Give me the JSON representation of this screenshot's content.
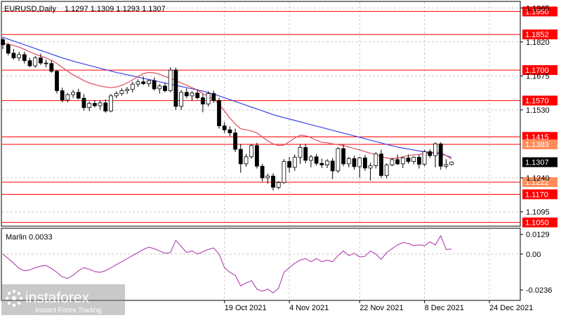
{
  "header": {
    "symbol": "EURUSD,Daily",
    "ohlc": "1.1297 1.1309 1.1293 1.1307"
  },
  "colors": {
    "background": "#ffffff",
    "grid": "#c8c8c8",
    "frame": "#000000",
    "level_line": "#ff0000",
    "level_label_bg": "#ff0000",
    "level_label_bg_light": "#ff8c5a",
    "price_label_bg": "#000000",
    "ma_fast": "#e04b5b",
    "ma_slow": "#3a44e8",
    "candle_bull_fill": "#ffffff",
    "candle_bear_fill": "#000000",
    "marlin_line": "#b040b0"
  },
  "watermark": {
    "brand": "instaforex",
    "tagline": "Instant Forex Trading",
    "icon": "instaforex-logo-icon"
  },
  "chart_data": [
    {
      "type": "candlestick",
      "title": "EURUSD,Daily",
      "ohlc_readout": "1.1297 1.1309 1.1293 1.1307",
      "ylim": [
        1.1037,
        1.1987
      ],
      "y_tick_labels": [
        "1.1965",
        "1.1820",
        "1.1675",
        "1.1530",
        "1.1240",
        "1.1095"
      ],
      "x_tick_labels": [
        "19 Oct 2021",
        "4 Nov 2021",
        "22 Nov 2021",
        "8 Dec 2021",
        "24 Dec 2021"
      ],
      "x_tick_index": [
        41,
        53,
        66,
        78,
        90
      ],
      "levels": [
        {
          "value": 1.195,
          "label": "1.1950"
        },
        {
          "value": 1.1852,
          "label": "1.1852"
        },
        {
          "value": 1.17,
          "label": "1.1700"
        },
        {
          "value": 1.157,
          "label": "1.1570"
        },
        {
          "value": 1.1415,
          "label": "1.1415"
        },
        {
          "value": 1.1383,
          "label": "1.1383",
          "light": true
        },
        {
          "value": 1.1222,
          "label": "1.1222",
          "light": true
        },
        {
          "value": 1.117,
          "label": "1.1170"
        },
        {
          "value": 1.105,
          "label": "1.1050"
        }
      ],
      "current_price": {
        "value": 1.1307,
        "label": "1.1307"
      },
      "candles": [
        [
          1.183,
          1.184,
          1.179,
          1.1808
        ],
        [
          1.1808,
          1.1815,
          1.1762,
          1.1772
        ],
        [
          1.1772,
          1.179,
          1.1745,
          1.1752
        ],
        [
          1.1752,
          1.1778,
          1.1738,
          1.1766
        ],
        [
          1.1766,
          1.1778,
          1.1728,
          1.174
        ],
        [
          1.174,
          1.1752,
          1.1712,
          1.1718
        ],
        [
          1.1718,
          1.176,
          1.171,
          1.1752
        ],
        [
          1.1752,
          1.177,
          1.1722,
          1.173
        ],
        [
          1.173,
          1.1745,
          1.1712,
          1.1728
        ],
        [
          1.1728,
          1.1742,
          1.1688,
          1.1695
        ],
        [
          1.1695,
          1.17,
          1.16,
          1.1612
        ],
        [
          1.1612,
          1.1625,
          1.1562,
          1.1572
        ],
        [
          1.1572,
          1.1603,
          1.1562,
          1.1595
        ],
        [
          1.1595,
          1.1615,
          1.158,
          1.1605
        ],
        [
          1.1605,
          1.162,
          1.1575,
          1.158
        ],
        [
          1.158,
          1.1598,
          1.1528,
          1.154
        ],
        [
          1.154,
          1.1565,
          1.1525,
          1.1558
        ],
        [
          1.1558,
          1.1572,
          1.154,
          1.1548
        ],
        [
          1.1548,
          1.157,
          1.1532,
          1.156
        ],
        [
          1.156,
          1.1575,
          1.1518,
          1.1525
        ],
        [
          1.1525,
          1.1598,
          1.152,
          1.159
        ],
        [
          1.159,
          1.161,
          1.158,
          1.16
        ],
        [
          1.16,
          1.1622,
          1.159,
          1.1612
        ],
        [
          1.1612,
          1.1628,
          1.1598,
          1.1618
        ],
        [
          1.1618,
          1.165,
          1.1605,
          1.164
        ],
        [
          1.164,
          1.166,
          1.1628,
          1.165
        ],
        [
          1.165,
          1.1672,
          1.1636,
          1.1642
        ],
        [
          1.1642,
          1.166,
          1.1628,
          1.1655
        ],
        [
          1.1655,
          1.1668,
          1.1612,
          1.162
        ],
        [
          1.162,
          1.164,
          1.16,
          1.1632
        ],
        [
          1.1632,
          1.1645,
          1.1605,
          1.1612
        ],
        [
          1.1612,
          1.1712,
          1.1605,
          1.17
        ],
        [
          1.17,
          1.171,
          1.153,
          1.1545
        ],
        [
          1.1545,
          1.1615,
          1.153,
          1.1605
        ],
        [
          1.1605,
          1.1622,
          1.158,
          1.159
        ],
        [
          1.159,
          1.161,
          1.157,
          1.1602
        ],
        [
          1.1602,
          1.1618,
          1.1575,
          1.1582
        ],
        [
          1.1582,
          1.1598,
          1.152,
          1.1555
        ],
        [
          1.1555,
          1.161,
          1.1545,
          1.16
        ],
        [
          1.16,
          1.1612,
          1.156,
          1.157
        ],
        [
          1.157,
          1.1582,
          1.145,
          1.1462
        ],
        [
          1.1462,
          1.1478,
          1.1432,
          1.1445
        ],
        [
          1.1445,
          1.146,
          1.1418,
          1.1432
        ],
        [
          1.1432,
          1.145,
          1.135,
          1.1362
        ],
        [
          1.1362,
          1.1385,
          1.1262,
          1.13
        ],
        [
          1.13,
          1.1342,
          1.1288,
          1.133
        ],
        [
          1.133,
          1.1385,
          1.1322,
          1.1378
        ],
        [
          1.1378,
          1.139,
          1.128,
          1.129
        ],
        [
          1.129,
          1.13,
          1.1225,
          1.124
        ],
        [
          1.124,
          1.1258,
          1.1215,
          1.1248
        ],
        [
          1.1248,
          1.126,
          1.1186,
          1.12
        ],
        [
          1.12,
          1.1225,
          1.1192,
          1.122
        ],
        [
          1.122,
          1.132,
          1.1215,
          1.131
        ],
        [
          1.131,
          1.133,
          1.1262,
          1.1285
        ],
        [
          1.1285,
          1.134,
          1.127,
          1.1328
        ],
        [
          1.1328,
          1.1382,
          1.13,
          1.137
        ],
        [
          1.137,
          1.1385,
          1.1302,
          1.1315
        ],
        [
          1.1315,
          1.1338,
          1.1285,
          1.133
        ],
        [
          1.133,
          1.1342,
          1.1292,
          1.1302
        ],
        [
          1.1302,
          1.1322,
          1.1282,
          1.1295
        ],
        [
          1.1295,
          1.132,
          1.1282,
          1.1312
        ],
        [
          1.1312,
          1.1325,
          1.1235,
          1.127
        ],
        [
          1.127,
          1.1372,
          1.1262,
          1.1365
        ],
        [
          1.1365,
          1.1382,
          1.129,
          1.13
        ],
        [
          1.13,
          1.133,
          1.1285,
          1.1322
        ],
        [
          1.1322,
          1.1335,
          1.1275,
          1.1288
        ],
        [
          1.1288,
          1.133,
          1.124,
          1.1325
        ],
        [
          1.1325,
          1.1338,
          1.127,
          1.1282
        ],
        [
          1.1282,
          1.1305,
          1.1228,
          1.1292
        ],
        [
          1.1292,
          1.135,
          1.128,
          1.1342
        ],
        [
          1.1342,
          1.136,
          1.124,
          1.125
        ],
        [
          1.125,
          1.1302,
          1.1238,
          1.1295
        ],
        [
          1.1295,
          1.1325,
          1.129,
          1.1318
        ],
        [
          1.1318,
          1.134,
          1.1295,
          1.13
        ],
        [
          1.13,
          1.133,
          1.1282,
          1.1325
        ],
        [
          1.1325,
          1.134,
          1.13,
          1.131
        ],
        [
          1.131,
          1.1332,
          1.1298,
          1.1328
        ],
        [
          1.1328,
          1.1338,
          1.128,
          1.1298
        ],
        [
          1.1298,
          1.136,
          1.129,
          1.1352
        ],
        [
          1.1352,
          1.1362,
          1.1325,
          1.1335
        ],
        [
          1.1335,
          1.1392,
          1.1285,
          1.1385
        ],
        [
          1.1385,
          1.1392,
          1.1275,
          1.129
        ],
        [
          1.129,
          1.132,
          1.128,
          1.1297
        ],
        [
          1.1297,
          1.1309,
          1.1293,
          1.1307
        ]
      ],
      "ma_fast": [
        1.1815,
        1.181,
        1.1805,
        1.1798,
        1.1788,
        1.1778,
        1.1768,
        1.176,
        1.1752,
        1.1742,
        1.1728,
        1.1712,
        1.1695,
        1.168,
        1.1668,
        1.1655,
        1.1645,
        1.1638,
        1.1632,
        1.1628,
        1.1625,
        1.1628,
        1.1635,
        1.1645,
        1.1658,
        1.1672,
        1.1685,
        1.169,
        1.1688,
        1.1682,
        1.1672,
        1.1665,
        1.1655,
        1.1645,
        1.1635,
        1.1625,
        1.1615,
        1.16,
        1.1588,
        1.1575,
        1.1555,
        1.1525,
        1.1495,
        1.147,
        1.145,
        1.1445,
        1.144,
        1.1432,
        1.1415,
        1.1398,
        1.1385,
        1.1378,
        1.138,
        1.1395,
        1.141,
        1.1422,
        1.142,
        1.1412,
        1.14,
        1.1392,
        1.139,
        1.1385,
        1.1382,
        1.1378,
        1.1372,
        1.1365,
        1.136,
        1.1352,
        1.1345,
        1.134,
        1.133,
        1.1325,
        1.1322,
        1.1325,
        1.133,
        1.1335,
        1.1338,
        1.134,
        1.1345,
        1.1348,
        1.135,
        1.1348,
        1.1335,
        1.132
      ],
      "ma_slow": [
        1.184,
        1.1832,
        1.1824,
        1.1816,
        1.1808,
        1.18,
        1.1792,
        1.1784,
        1.1776,
        1.1768,
        1.176,
        1.1752,
        1.1745,
        1.1738,
        1.1732,
        1.1726,
        1.172,
        1.1714,
        1.1708,
        1.1702,
        1.1696,
        1.169,
        1.1685,
        1.168,
        1.1675,
        1.167,
        1.1665,
        1.166,
        1.1655,
        1.165,
        1.1645,
        1.164,
        1.1635,
        1.163,
        1.1625,
        1.162,
        1.1615,
        1.161,
        1.1604,
        1.1598,
        1.159,
        1.1582,
        1.1574,
        1.1566,
        1.1558,
        1.155,
        1.1542,
        1.1534,
        1.1526,
        1.1518,
        1.151,
        1.1503,
        1.1497,
        1.1491,
        1.1485,
        1.1479,
        1.1473,
        1.1467,
        1.1461,
        1.1455,
        1.1449,
        1.1443,
        1.1437,
        1.1431,
        1.1425,
        1.1419,
        1.1413,
        1.1407,
        1.1401,
        1.1395,
        1.1389,
        1.1383,
        1.1377,
        1.1372,
        1.1367,
        1.1363,
        1.1359,
        1.1355,
        1.1351,
        1.1348,
        1.1345,
        1.1342,
        1.1335,
        1.1328
      ]
    },
    {
      "type": "line",
      "title": "Marlin 0.0033",
      "ylim": [
        -0.03,
        0.016
      ],
      "y_tick_labels": [
        "0.0129",
        "0.00",
        "-0.0236"
      ],
      "zero_level": 0.0,
      "values": [
        0.0,
        -0.003,
        -0.006,
        -0.0095,
        -0.011,
        -0.0105,
        -0.009,
        -0.008,
        -0.0075,
        -0.0095,
        -0.012,
        -0.015,
        -0.016,
        -0.014,
        -0.011,
        -0.009,
        -0.01,
        -0.0115,
        -0.012,
        -0.011,
        -0.009,
        -0.007,
        -0.005,
        -0.003,
        -0.001,
        0.001,
        0.003,
        0.0045,
        0.0035,
        0.002,
        0.0005,
        0.001,
        0.009,
        0.005,
        0.001,
        0.002,
        0.0,
        0.0015,
        0.003,
        0.004,
        0.0,
        -0.009,
        -0.012,
        -0.014,
        -0.021,
        -0.019,
        -0.0175,
        -0.023,
        -0.0245,
        -0.023,
        -0.0255,
        -0.0225,
        -0.012,
        -0.009,
        -0.006,
        -0.004,
        -0.003,
        -0.005,
        -0.003,
        -0.005,
        -0.004,
        -0.005,
        -0.001,
        0.002,
        -0.001,
        0.0005,
        -0.002,
        -0.0015,
        0.002,
        0.0,
        -0.0035,
        0.001,
        0.0035,
        0.006,
        0.0075,
        0.007,
        0.0055,
        0.006,
        0.0055,
        0.008,
        0.006,
        0.012,
        0.003,
        0.0033
      ]
    }
  ]
}
